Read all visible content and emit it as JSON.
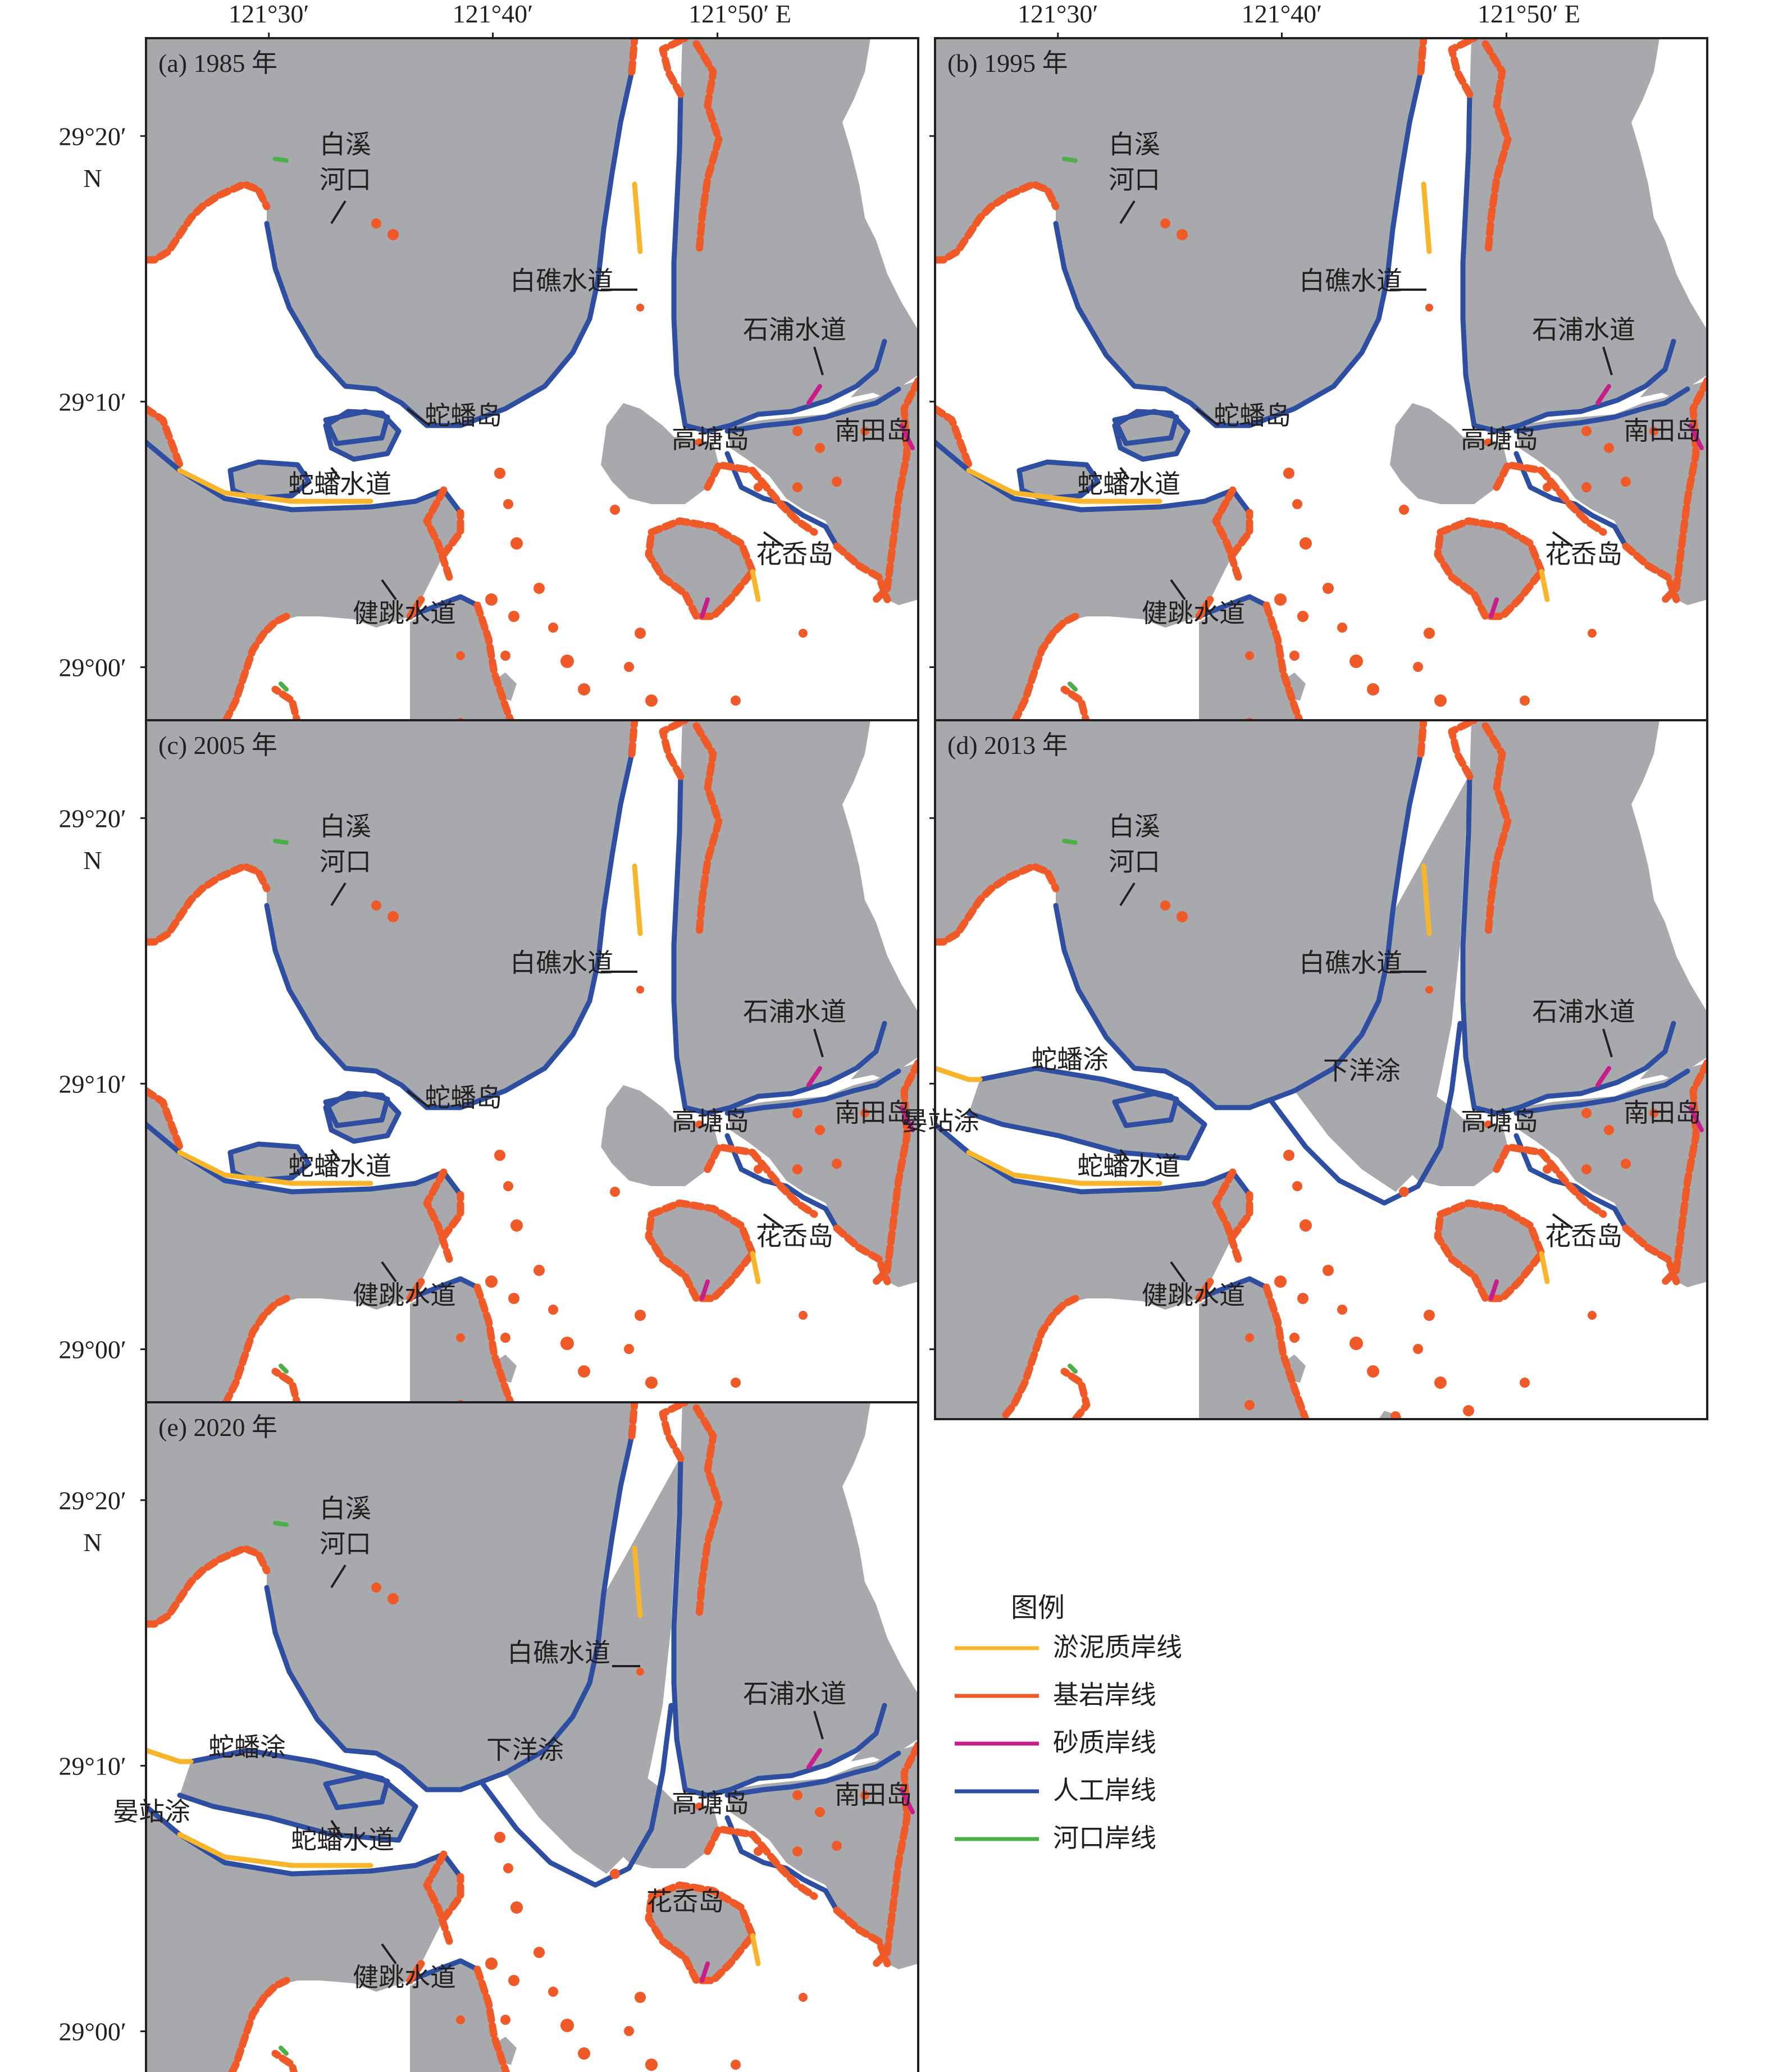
{
  "axes": {
    "longitude_labels": [
      "121°30′",
      "121°40′",
      "121°50′ E"
    ],
    "latitude_labels": [
      "29°20′",
      "N",
      "29°10′",
      "29°00′"
    ]
  },
  "panels": [
    {
      "id": "a",
      "title": "(a) 1985 年",
      "labels": [
        "白溪",
        "河口",
        "白礁水道",
        "石浦水道",
        "蛇蟠岛",
        "高塘岛",
        "南田岛",
        "蛇蟠水道",
        "花岙岛",
        "健跳水道"
      ]
    },
    {
      "id": "b",
      "title": "(b) 1995 年",
      "labels": [
        "白溪",
        "河口",
        "白礁水道",
        "石浦水道",
        "蛇蟠岛",
        "高塘岛",
        "南田岛",
        "蛇蟠水道",
        "花岙岛",
        "健跳水道"
      ]
    },
    {
      "id": "c",
      "title": "(c) 2005 年",
      "labels": [
        "白溪",
        "河口",
        "白礁水道",
        "石浦水道",
        "蛇蟠岛",
        "高塘岛",
        "南田岛",
        "蛇蟠水道",
        "花岙岛",
        "健跳水道"
      ]
    },
    {
      "id": "d",
      "title": "(d) 2013 年",
      "labels": [
        "白溪",
        "河口",
        "白礁水道",
        "石浦水道",
        "蛇蟠涂",
        "下洋涂",
        "晏站涂",
        "高塘岛",
        "南田岛",
        "蛇蟠水道",
        "花岙岛",
        "健跳水道"
      ]
    },
    {
      "id": "e",
      "title": "(e) 2020 年",
      "labels": [
        "白溪",
        "河口",
        "白礁水道",
        "石浦水道",
        "下洋涂",
        "蛇蟠涂",
        "晏站涂",
        "高塘岛",
        "南田岛",
        "蛇蟠水道",
        "花岙岛",
        "健跳水道"
      ]
    }
  ],
  "legend": {
    "title": "图例",
    "items": [
      {
        "label": "淤泥质岸线",
        "color": "#f7b52c"
      },
      {
        "label": "基岩岸线",
        "color": "#ef5a28"
      },
      {
        "label": "砂质岸线",
        "color": "#c81e8c"
      },
      {
        "label": "人工岸线",
        "color": "#2e4fa1"
      },
      {
        "label": "河口岸线",
        "color": "#4daf4a"
      }
    ]
  },
  "colors": {
    "land": "#a7a9ac",
    "sea": "#ffffff"
  }
}
